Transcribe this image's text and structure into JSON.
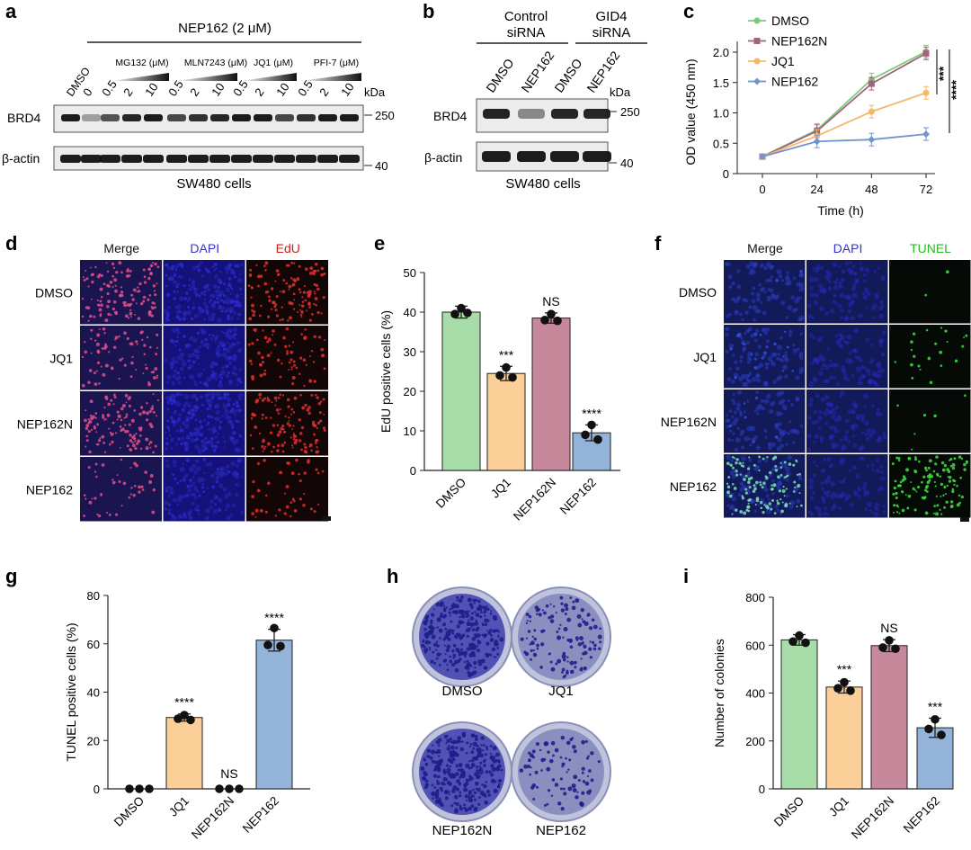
{
  "colors": {
    "dmso": "#a8dca8",
    "jq1": "#fbcf98",
    "nep162n": "#c8889c",
    "nep162": "#93b3d9",
    "line_dmso": "#7fc97f",
    "line_nep162n": "#a0657a",
    "line_jq1": "#f5b86a",
    "line_nep162": "#6f95cf",
    "dapi": "#3434c8",
    "edu": "#d02020",
    "tunel": "#28b828"
  },
  "panel_a": {
    "letter": "a",
    "treatment": "NEP162 (2 μM)",
    "dmso": "DMSO",
    "groups": [
      "MG132 (μM)",
      "MLN7243 (μM)",
      "JQ1 (μM)",
      "PFI-7 (μM)"
    ],
    "conc": [
      "0",
      "0.5",
      "2",
      "10",
      "0.5",
      "2",
      "10",
      "0.5",
      "2",
      "10",
      "0.5",
      "2",
      "10"
    ],
    "kda": "kDa",
    "rows": [
      "BRD4",
      "β-actin"
    ],
    "markers": [
      "250",
      "40"
    ],
    "cells": "SW480 cells"
  },
  "panel_b": {
    "letter": "b",
    "headers": [
      "Control\nsiRNA",
      "GID4\nsiRNA"
    ],
    "lanes": [
      "DMSO",
      "NEP162",
      "DMSO",
      "NEP162"
    ],
    "kda": "kDa",
    "rows": [
      "BRD4",
      "β-actin"
    ],
    "markers": [
      "250",
      "40"
    ],
    "cells": "SW480 cells"
  },
  "panel_c": {
    "letter": "c",
    "chart_data": {
      "type": "line",
      "title": "",
      "xlabel": "Time (h)",
      "ylabel": "OD value (450 nm)",
      "x": [
        0,
        24,
        48,
        72
      ],
      "xticks": [
        "0",
        "24",
        "48",
        "72"
      ],
      "yticks": [
        "0",
        "0.5",
        "1.0",
        "1.5",
        "2.0"
      ],
      "ylim": [
        0,
        2.0
      ],
      "series": [
        {
          "name": "DMSO",
          "values": [
            0.28,
            0.72,
            1.55,
            2.01
          ]
        },
        {
          "name": "NEP162N",
          "values": [
            0.28,
            0.7,
            1.48,
            1.98
          ]
        },
        {
          "name": "JQ1",
          "values": [
            0.28,
            0.62,
            1.02,
            1.33
          ]
        },
        {
          "name": "NEP162",
          "values": [
            0.28,
            0.53,
            0.56,
            0.65
          ]
        }
      ],
      "annotations": [
        "***",
        "****"
      ]
    }
  },
  "panel_d": {
    "letter": "d",
    "cols": [
      "Merge",
      "DAPI",
      "EdU"
    ],
    "rows": [
      "DMSO",
      "JQ1",
      "NEP162N",
      "NEP162"
    ]
  },
  "panel_e": {
    "letter": "e",
    "chart_data": {
      "type": "bar",
      "categories": [
        "DMSO",
        "JQ1",
        "NEP162N",
        "NEP162"
      ],
      "values": [
        40,
        24.5,
        38.5,
        9.5
      ],
      "errors": [
        1.5,
        1.8,
        1.3,
        2.0
      ],
      "points": [
        [
          41,
          39.5,
          39.8
        ],
        [
          26,
          24,
          23.5
        ],
        [
          39.5,
          38,
          37.8
        ],
        [
          11.5,
          9,
          7.8
        ]
      ],
      "significance": [
        "",
        "***",
        "NS",
        "****"
      ],
      "ylabel": "EdU positive cells (%)",
      "yticks": [
        "0",
        "10",
        "20",
        "30",
        "40",
        "50"
      ],
      "ylim": [
        0,
        50
      ]
    }
  },
  "panel_f": {
    "letter": "f",
    "cols": [
      "Merge",
      "DAPI",
      "TUNEL"
    ],
    "rows": [
      "DMSO",
      "JQ1",
      "NEP162N",
      "NEP162"
    ]
  },
  "panel_g": {
    "letter": "g",
    "chart_data": {
      "type": "bar",
      "categories": [
        "DMSO",
        "JQ1",
        "NEP162N",
        "NEP162"
      ],
      "values": [
        0,
        29.5,
        0,
        61.5
      ],
      "errors": [
        0,
        1.5,
        0,
        4.5
      ],
      "points": [
        [
          0,
          0,
          0
        ],
        [
          30.5,
          29,
          28.5
        ],
        [
          0,
          0,
          0
        ],
        [
          66.5,
          59.5,
          59
        ]
      ],
      "significance": [
        "",
        "****",
        "NS",
        "****"
      ],
      "ylabel": "TUNEL positive cells (%)",
      "yticks": [
        "0",
        "20",
        "40",
        "60",
        "80"
      ],
      "ylim": [
        0,
        80
      ]
    }
  },
  "panel_h": {
    "letter": "h",
    "dishes": [
      "DMSO",
      "JQ1",
      "NEP162N",
      "NEP162"
    ]
  },
  "panel_i": {
    "letter": "i",
    "chart_data": {
      "type": "bar",
      "categories": [
        "DMSO",
        "JQ1",
        "NEP162N",
        "NEP162"
      ],
      "values": [
        622,
        425,
        598,
        255
      ],
      "errors": [
        22,
        25,
        25,
        40
      ],
      "points": [
        [
          640,
          615,
          610
        ],
        [
          445,
          420,
          410
        ],
        [
          620,
          590,
          585
        ],
        [
          290,
          250,
          225
        ]
      ],
      "significance": [
        "",
        "***",
        "NS",
        "***"
      ],
      "ylabel": "Number of colonies",
      "yticks": [
        "0",
        "200",
        "400",
        "600",
        "800"
      ],
      "ylim": [
        0,
        800
      ]
    }
  }
}
